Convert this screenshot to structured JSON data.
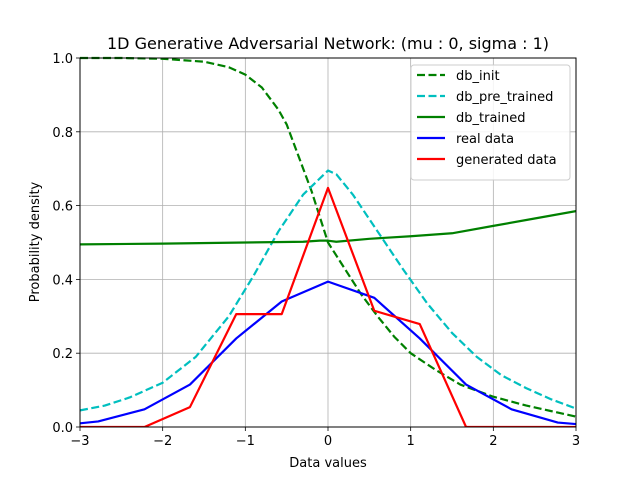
{
  "chart_data": {
    "type": "line",
    "title": "1D Generative Adversarial Network: (mu :   0, sigma :   1)",
    "xlabel": "Data values",
    "ylabel": "Probability density",
    "xlim": [
      -3,
      3
    ],
    "ylim": [
      0,
      1
    ],
    "x_ticks": [
      -3,
      -2,
      -1,
      0,
      1,
      2,
      3
    ],
    "x_tick_labels": [
      "−3",
      "−2",
      "−1",
      "0",
      "1",
      "2",
      "3"
    ],
    "y_ticks": [
      0.0,
      0.2,
      0.4,
      0.6,
      0.8,
      1.0
    ],
    "y_tick_labels": [
      "0.0",
      "0.2",
      "0.4",
      "0.6",
      "0.8",
      "1.0"
    ],
    "grid": true,
    "legend_position": "top-right",
    "series": [
      {
        "name": "db_init",
        "color": "#008000",
        "dash": "dashed",
        "points": [
          [
            -3,
            1.0
          ],
          [
            -2.5,
            1.0
          ],
          [
            -2.0,
            0.998
          ],
          [
            -1.5,
            0.99
          ],
          [
            -1.2,
            0.975
          ],
          [
            -1.0,
            0.955
          ],
          [
            -0.8,
            0.92
          ],
          [
            -0.6,
            0.86
          ],
          [
            -0.5,
            0.82
          ],
          [
            -0.4,
            0.76
          ],
          [
            -0.3,
            0.7
          ],
          [
            -0.2,
            0.64
          ],
          [
            -0.1,
            0.57
          ],
          [
            0.0,
            0.5
          ],
          [
            0.2,
            0.43
          ],
          [
            0.4,
            0.36
          ],
          [
            0.6,
            0.3
          ],
          [
            0.8,
            0.245
          ],
          [
            1.0,
            0.2
          ],
          [
            1.3,
            0.155
          ],
          [
            1.6,
            0.115
          ],
          [
            2.0,
            0.082
          ],
          [
            2.4,
            0.058
          ],
          [
            2.7,
            0.043
          ],
          [
            3.0,
            0.028
          ]
        ]
      },
      {
        "name": "db_pre_trained",
        "color": "#00bfbf",
        "dash": "dashed",
        "points": [
          [
            -3,
            0.045
          ],
          [
            -2.7,
            0.058
          ],
          [
            -2.4,
            0.08
          ],
          [
            -2.0,
            0.12
          ],
          [
            -1.6,
            0.19
          ],
          [
            -1.2,
            0.3
          ],
          [
            -0.9,
            0.41
          ],
          [
            -0.6,
            0.53
          ],
          [
            -0.3,
            0.63
          ],
          [
            0.0,
            0.695
          ],
          [
            0.1,
            0.685
          ],
          [
            0.3,
            0.63
          ],
          [
            0.6,
            0.53
          ],
          [
            0.9,
            0.43
          ],
          [
            1.2,
            0.335
          ],
          [
            1.5,
            0.255
          ],
          [
            1.8,
            0.19
          ],
          [
            2.1,
            0.14
          ],
          [
            2.4,
            0.105
          ],
          [
            2.7,
            0.075
          ],
          [
            3.0,
            0.05
          ]
        ]
      },
      {
        "name": "db_trained",
        "color": "#008000",
        "dash": "solid",
        "points": [
          [
            -3,
            0.495
          ],
          [
            -2.0,
            0.497
          ],
          [
            -1.0,
            0.5
          ],
          [
            -0.3,
            0.502
          ],
          [
            -0.1,
            0.505
          ],
          [
            0.0,
            0.505
          ],
          [
            0.1,
            0.502
          ],
          [
            0.5,
            0.51
          ],
          [
            1.0,
            0.517
          ],
          [
            1.5,
            0.525
          ],
          [
            2.0,
            0.545
          ],
          [
            2.5,
            0.565
          ],
          [
            3.0,
            0.585
          ]
        ]
      },
      {
        "name": "real data",
        "color": "#0000ff",
        "dash": "solid",
        "points": [
          [
            -3,
            0.01
          ],
          [
            -2.78,
            0.015
          ],
          [
            -2.22,
            0.048
          ],
          [
            -1.67,
            0.115
          ],
          [
            -1.11,
            0.24
          ],
          [
            -0.56,
            0.34
          ],
          [
            0.0,
            0.394
          ],
          [
            0.56,
            0.35
          ],
          [
            1.11,
            0.24
          ],
          [
            1.67,
            0.115
          ],
          [
            2.22,
            0.048
          ],
          [
            2.78,
            0.012
          ],
          [
            3.0,
            0.008
          ]
        ]
      },
      {
        "name": "generated data",
        "color": "#ff0000",
        "dash": "solid",
        "points": [
          [
            -3,
            0.0
          ],
          [
            -2.22,
            0.0
          ],
          [
            -1.67,
            0.054
          ],
          [
            -1.11,
            0.306
          ],
          [
            -0.56,
            0.306
          ],
          [
            0.0,
            0.648
          ],
          [
            0.56,
            0.315
          ],
          [
            1.11,
            0.279
          ],
          [
            1.67,
            0.0
          ],
          [
            2.22,
            0.0
          ],
          [
            3.0,
            0.0
          ]
        ]
      }
    ]
  }
}
